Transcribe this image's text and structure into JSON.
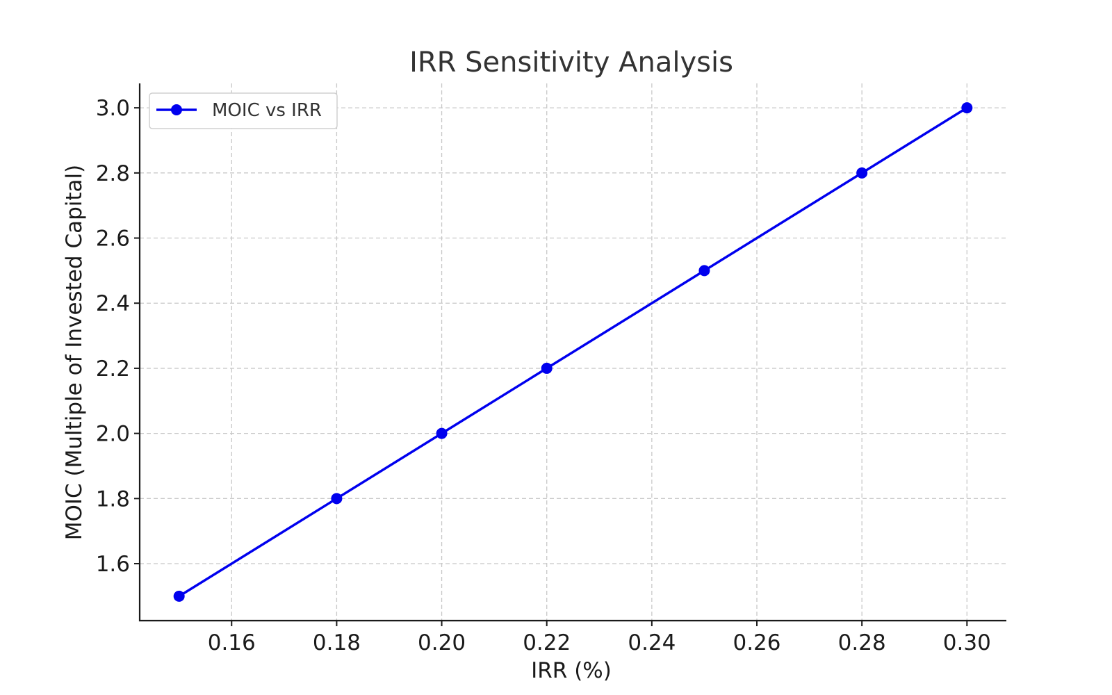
{
  "chart_data": {
    "type": "line",
    "title": "IRR Sensitivity Analysis",
    "xlabel": "IRR (%)",
    "ylabel": "MOIC (Multiple of Invested Capital)",
    "xlim": [
      0.1425,
      0.3075
    ],
    "ylim": [
      1.425,
      3.075
    ],
    "xticks": [
      "0.16",
      "0.18",
      "0.20",
      "0.22",
      "0.24",
      "0.26",
      "0.28",
      "0.30"
    ],
    "yticks": [
      "1.6",
      "1.8",
      "2.0",
      "2.2",
      "2.4",
      "2.6",
      "2.8",
      "3.0"
    ],
    "grid": true,
    "legend_position": "top-left",
    "series": [
      {
        "name": "MOIC vs IRR",
        "color": "#0000ee",
        "x": [
          0.15,
          0.18,
          0.2,
          0.22,
          0.25,
          0.28,
          0.3
        ],
        "y": [
          1.5,
          1.8,
          2.0,
          2.2,
          2.5,
          2.8,
          3.0
        ]
      }
    ]
  }
}
